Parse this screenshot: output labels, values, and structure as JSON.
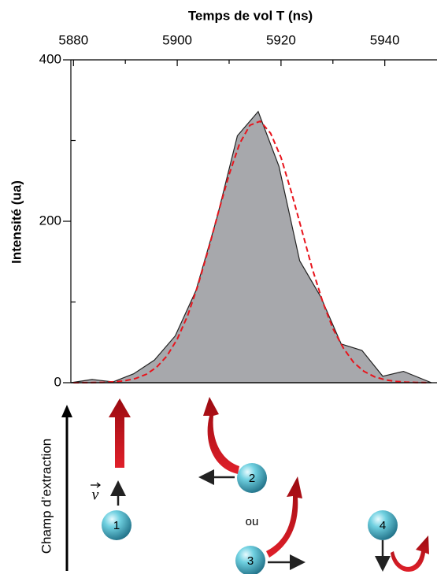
{
  "chart_data": {
    "type": "area",
    "title": "Temps de vol T (ns)",
    "y_label": "Intensité (ua)",
    "xlim": [
      5879.5,
      5949
    ],
    "xticks": [
      5880,
      5900,
      5920,
      5940
    ],
    "xminor_ticks": [
      5890,
      5910,
      5930
    ],
    "ylim": [
      0,
      400
    ],
    "yticks": [
      0,
      200,
      400
    ],
    "yminor_ticks": [
      100,
      300
    ],
    "series": [
      {
        "type": "area",
        "color": "#a7a8ac",
        "x": [
          5879.5,
          5883.6,
          5887.6,
          5891.6,
          5895.6,
          5899.6,
          5903.6,
          5907.6,
          5911.6,
          5915.6,
          5919.6,
          5923.6,
          5927.6,
          5931.6,
          5935.6,
          5939.6,
          5943.6,
          5949
        ],
        "values": [
          0,
          4,
          1,
          11,
          28,
          58,
          114,
          203,
          306,
          336,
          268,
          151,
          107,
          48,
          40,
          8,
          14,
          0
        ]
      },
      {
        "type": "line",
        "style": "dashed",
        "color": "#e8141c",
        "x": [
          5880,
          5882,
          5884,
          5886,
          5888,
          5890,
          5892,
          5894,
          5896,
          5898,
          5900,
          5902,
          5904,
          5906,
          5908,
          5910,
          5912,
          5914,
          5916,
          5918,
          5920,
          5922,
          5924,
          5926,
          5928,
          5930,
          5932,
          5934,
          5936,
          5938,
          5940,
          5942,
          5944,
          5946,
          5948
        ],
        "values": [
          0,
          0.1,
          0.2,
          0.5,
          1.2,
          2.5,
          5.3,
          10.3,
          19,
          33,
          54,
          83,
          121,
          165,
          213,
          258,
          296,
          319,
          324,
          309,
          279,
          236,
          189,
          142,
          101,
          67,
          43,
          25,
          14,
          7.4,
          3.7,
          1.7,
          0.8,
          0.3,
          0.1
        ]
      }
    ]
  },
  "diagram": {
    "axis_label": "Champ d’extraction",
    "velocity_symbol": "v",
    "or_text": "ou",
    "balls": [
      "1",
      "2",
      "3",
      "4"
    ]
  }
}
